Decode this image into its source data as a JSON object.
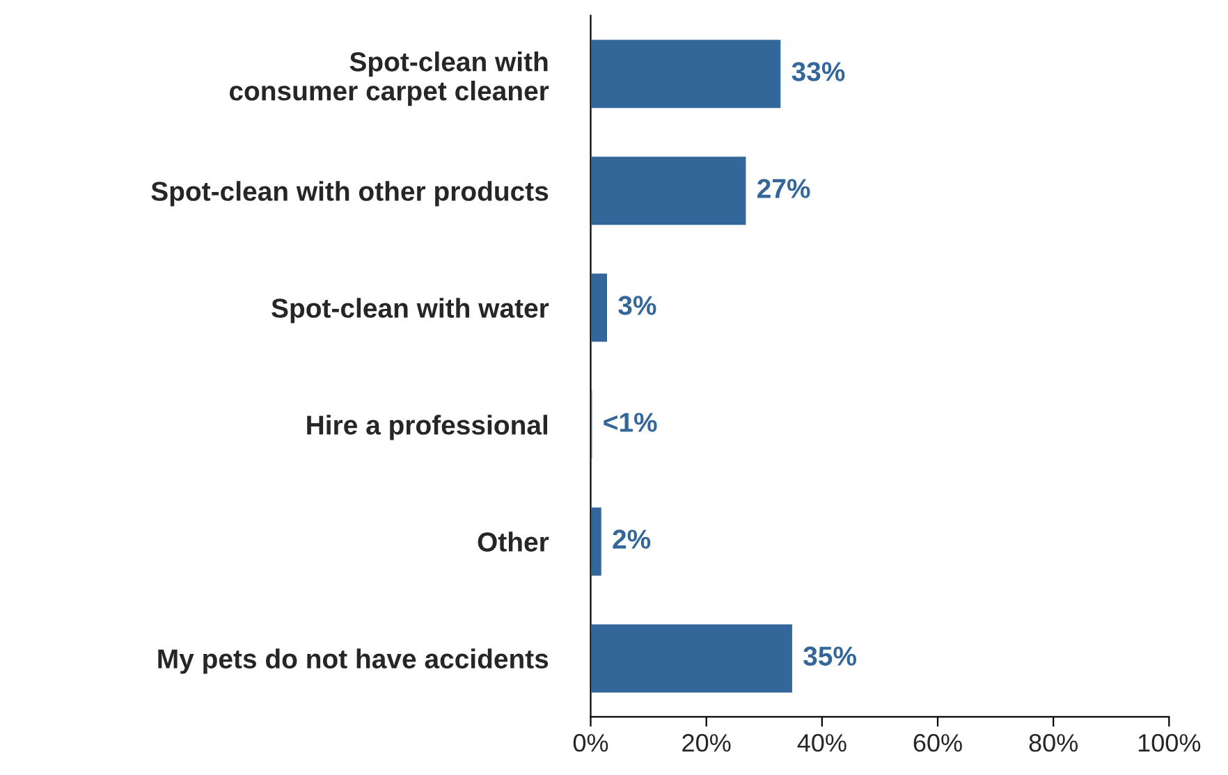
{
  "chart_data": {
    "type": "bar",
    "orientation": "horizontal",
    "categories": [
      "Spot-clean with\nconsumer carpet cleaner",
      "Spot-clean with other products",
      "Spot-clean with water",
      "Hire a professional",
      "Other",
      "My pets do not have accidents"
    ],
    "values": [
      33,
      27,
      3,
      0.4,
      2,
      35
    ],
    "value_labels": [
      "33%",
      "27%",
      "3%",
      "<1%",
      "2%",
      "35%"
    ],
    "color": "#336699",
    "xlim": [
      0,
      100
    ],
    "xticks": [
      {
        "value": 0,
        "label": "0%"
      },
      {
        "value": 20,
        "label": "20%"
      },
      {
        "value": 40,
        "label": "40%"
      },
      {
        "value": 60,
        "label": "60%"
      },
      {
        "value": 80,
        "label": "80%"
      },
      {
        "value": 100,
        "label": "100%"
      }
    ],
    "grid": false,
    "legend": false
  }
}
